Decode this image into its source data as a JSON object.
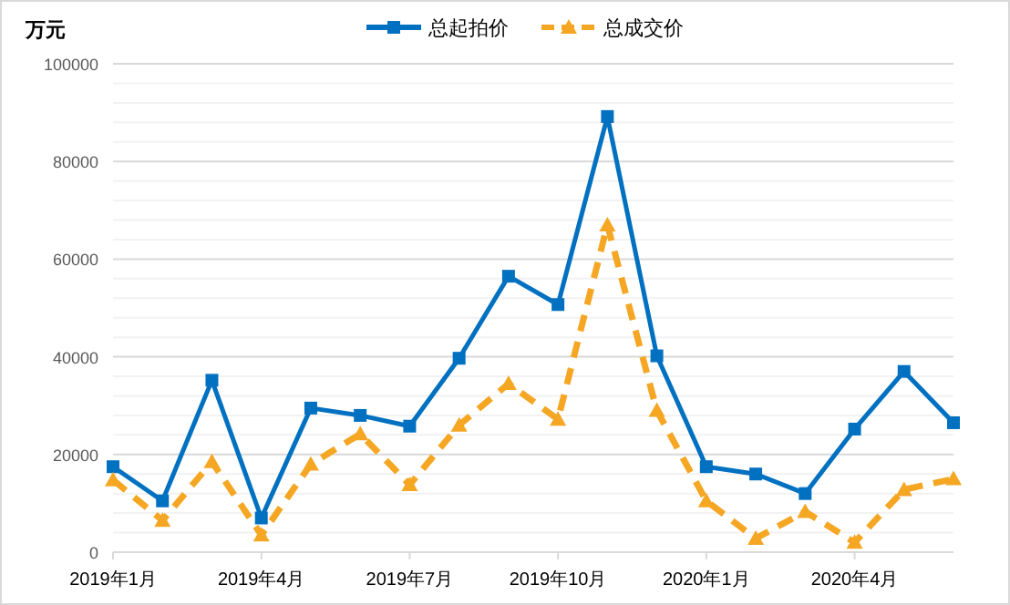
{
  "chart_data": {
    "type": "line",
    "ylabel": "万元",
    "x": [
      "2019-01",
      "2019-02",
      "2019-03",
      "2019-04",
      "2019-05",
      "2019-06",
      "2019-07",
      "2019-08",
      "2019-09",
      "2019-10",
      "2019-11",
      "2019-12",
      "2020-01",
      "2020-02",
      "2020-03",
      "2020-04",
      "2020-05",
      "2020-06"
    ],
    "series": [
      {
        "name": "总起拍价",
        "color": "#0070c0",
        "marker": "square",
        "line_style": "solid",
        "values": [
          17500,
          10500,
          35200,
          7000,
          29500,
          28000,
          25800,
          39700,
          56500,
          50700,
          89200,
          40200,
          17500,
          16000,
          12000,
          25200,
          37000,
          26500
        ]
      },
      {
        "name": "总成交价",
        "color": "#f5a623",
        "marker": "triangle",
        "line_style": "dashed",
        "values": [
          14800,
          6500,
          18500,
          3500,
          18000,
          24200,
          13800,
          26000,
          34500,
          27200,
          67000,
          29000,
          10500,
          2800,
          8300,
          2000,
          12800,
          15000
        ]
      }
    ],
    "xlim": [
      "2019-01",
      "2020-06"
    ],
    "xticks": [
      {
        "value": "2019-01",
        "label": "2019年1月"
      },
      {
        "value": "2019-04",
        "label": "2019年4月"
      },
      {
        "value": "2019-07",
        "label": "2019年7月"
      },
      {
        "value": "2019-10",
        "label": "2019年10月"
      },
      {
        "value": "2020-01",
        "label": "2020年1月"
      },
      {
        "value": "2020-04",
        "label": "2020年4月"
      }
    ],
    "ylim": [
      0,
      100000
    ],
    "yticks": [
      0,
      {
        "value": 4000,
        "label": null
      },
      {
        "value": 8000,
        "label": null
      },
      {
        "value": 12000,
        "label": null
      },
      {
        "value": 16000,
        "label": null
      },
      20000,
      {
        "value": 24000,
        "label": null
      },
      {
        "value": 28000,
        "label": null
      },
      {
        "value": 32000,
        "label": null
      },
      {
        "value": 36000,
        "label": null
      },
      40000,
      {
        "value": 44000,
        "label": null
      },
      {
        "value": 48000,
        "label": null
      },
      {
        "value": 52000,
        "label": null
      },
      {
        "value": 56000,
        "label": null
      },
      60000,
      {
        "value": 64000,
        "label": null
      },
      {
        "value": 68000,
        "label": null
      },
      {
        "value": 72000,
        "label": null
      },
      {
        "value": 76000,
        "label": null
      },
      80000,
      {
        "value": 84000,
        "label": null
      },
      {
        "value": 88000,
        "label": null
      },
      {
        "value": 92000,
        "label": null
      },
      {
        "value": 96000,
        "label": null
      },
      100000
    ],
    "grid": "y",
    "legend": "top"
  }
}
